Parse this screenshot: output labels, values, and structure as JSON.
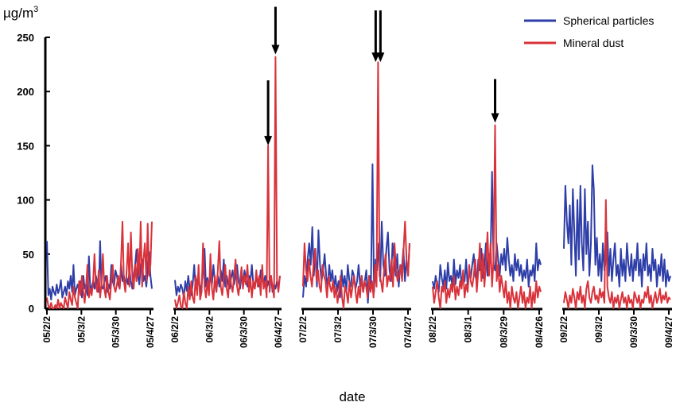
{
  "chart_data": {
    "type": "line",
    "title": "",
    "ylabel": "µg/m",
    "ylabel_superscript": "3",
    "xlabel": "date",
    "ylim": [
      0,
      250
    ],
    "yticks": [
      0,
      50,
      100,
      150,
      200,
      250
    ],
    "legend_position": "top-right",
    "series": [
      {
        "name": "Spherical particles",
        "color": "#2e3ea8"
      },
      {
        "name": "Mineral dust",
        "color": "#d9323a"
      }
    ],
    "panels": [
      {
        "tick_labels": [
          "05/2/2",
          "05/3/2",
          "05/3/30",
          "05/4/27"
        ],
        "arrows": [],
        "spherical": [
          62,
          12,
          18,
          8,
          20,
          15,
          12,
          22,
          14,
          18,
          26,
          10,
          15,
          20,
          12,
          25,
          18,
          30,
          15,
          40,
          12,
          18,
          22,
          15,
          25,
          10,
          30,
          18,
          22,
          12,
          48,
          15,
          20,
          25,
          18,
          30,
          22,
          15,
          62,
          20,
          18,
          25,
          30,
          15,
          22,
          18,
          40,
          25,
          20,
          35,
          30,
          22,
          18,
          40,
          25,
          30,
          20,
          28,
          22,
          35,
          25,
          18,
          30,
          40,
          54,
          30,
          22,
          38,
          45,
          25,
          30,
          20,
          35,
          52,
          30,
          18
        ],
        "mineral": [
          10,
          2,
          0,
          5,
          0,
          0,
          3,
          0,
          8,
          0,
          5,
          2,
          0,
          10,
          5,
          0,
          15,
          8,
          3,
          20,
          10,
          5,
          0,
          25,
          12,
          30,
          15,
          5,
          22,
          40,
          10,
          18,
          12,
          25,
          50,
          20,
          15,
          35,
          10,
          22,
          50,
          18,
          10,
          30,
          15,
          8,
          25,
          40,
          20,
          15,
          22,
          30,
          18,
          45,
          80,
          25,
          15,
          35,
          60,
          20,
          70,
          30,
          18,
          40,
          25,
          55,
          30,
          80,
          20,
          45,
          60,
          25,
          78,
          30,
          40,
          80
        ]
      },
      {
        "tick_labels": [
          "06/2/2",
          "06/3/2",
          "06/3/30",
          "06/4/27"
        ],
        "arrows": [
          148,
          232
        ],
        "spherical": [
          26,
          12,
          20,
          15,
          22,
          18,
          10,
          25,
          16,
          30,
          18,
          12,
          22,
          40,
          18,
          25,
          30,
          15,
          22,
          35,
          55,
          20,
          28,
          18,
          30,
          22,
          40,
          25,
          15,
          30,
          20,
          35,
          25,
          45,
          20,
          30,
          22,
          18,
          28,
          35,
          22,
          30,
          40,
          25,
          18,
          30,
          22,
          35,
          28,
          20,
          30,
          25,
          40,
          22,
          18,
          30,
          25,
          20,
          35,
          28,
          22,
          30,
          18,
          25,
          20,
          30,
          15,
          22,
          18,
          25,
          20,
          30
        ],
        "mineral": [
          8,
          0,
          5,
          12,
          2,
          0,
          15,
          5,
          0,
          20,
          8,
          25,
          10,
          5,
          30,
          12,
          40,
          8,
          15,
          60,
          20,
          10,
          25,
          12,
          50,
          18,
          8,
          30,
          15,
          35,
          62,
          20,
          12,
          28,
          40,
          18,
          10,
          35,
          22,
          15,
          30,
          45,
          20,
          12,
          25,
          38,
          18,
          30,
          22,
          40,
          15,
          28,
          10,
          25,
          18,
          35,
          20,
          30,
          12,
          40,
          18,
          25,
          10,
          150,
          15,
          30,
          20,
          10,
          232,
          25,
          15,
          30
        ]
      },
      {
        "tick_labels": [
          "07/2/2",
          "07/3/2",
          "07/3/30",
          "07/4/27"
        ],
        "arrows": [
          225,
          225
        ],
        "spherical": [
          10,
          30,
          20,
          45,
          60,
          40,
          75,
          30,
          55,
          20,
          72,
          40,
          25,
          35,
          50,
          30,
          20,
          40,
          25,
          35,
          18,
          30,
          15,
          25,
          10,
          35,
          20,
          30,
          15,
          40,
          25,
          20,
          35,
          30,
          18,
          25,
          40,
          20,
          30,
          15,
          25,
          35,
          5,
          30,
          20,
          133,
          15,
          45,
          35,
          60,
          25,
          80,
          40,
          30,
          55,
          70,
          35,
          25,
          60,
          45,
          30,
          50,
          20,
          40,
          35,
          55,
          25,
          45,
          30,
          60
        ],
        "mineral": [
          20,
          60,
          35,
          25,
          45,
          30,
          20,
          40,
          55,
          25,
          35,
          20,
          15,
          40,
          30,
          25,
          10,
          30,
          20,
          15,
          25,
          10,
          20,
          5,
          15,
          30,
          10,
          0,
          20,
          15,
          5,
          25,
          10,
          20,
          30,
          15,
          5,
          20,
          10,
          30,
          15,
          25,
          20,
          10,
          30,
          15,
          25,
          10,
          40,
          20,
          227,
          30,
          25,
          15,
          35,
          50,
          20,
          30,
          25,
          45,
          20,
          60,
          35,
          25,
          30,
          40,
          25,
          55,
          80,
          45,
          30,
          60
        ]
      },
      {
        "tick_labels": [
          "08/2/2",
          "08/3/1",
          "08/3/29",
          "08/4/26"
        ],
        "arrows": [
          169
        ],
        "spherical": [
          25,
          18,
          30,
          22,
          15,
          40,
          28,
          20,
          35,
          18,
          42,
          25,
          30,
          20,
          45,
          22,
          35,
          28,
          40,
          20,
          30,
          25,
          45,
          18,
          35,
          28,
          40,
          50,
          30,
          25,
          45,
          35,
          55,
          28,
          40,
          60,
          30,
          50,
          45,
          126,
          40,
          35,
          60,
          45,
          30,
          50,
          40,
          55,
          35,
          65,
          45,
          30,
          40,
          25,
          50,
          35,
          45,
          30,
          40,
          25,
          35,
          28,
          45,
          20,
          35,
          30,
          40,
          25,
          60,
          35,
          45,
          40
        ],
        "mineral": [
          20,
          5,
          15,
          25,
          10,
          0,
          20,
          15,
          25,
          5,
          18,
          10,
          22,
          15,
          30,
          8,
          20,
          12,
          25,
          18,
          35,
          10,
          22,
          15,
          40,
          25,
          20,
          30,
          45,
          15,
          35,
          60,
          25,
          50,
          20,
          40,
          70,
          30,
          60,
          20,
          45,
          169,
          25,
          40,
          15,
          30,
          20,
          10,
          25,
          5,
          15,
          0,
          20,
          10,
          5,
          15,
          0,
          10,
          20,
          5,
          15,
          0,
          10,
          5,
          20,
          0,
          15,
          5,
          25,
          10,
          20,
          15
        ]
      },
      {
        "tick_labels": [
          "09/2/2",
          "09/3/2",
          "09/3/30",
          "09/4/27"
        ],
        "arrows": [],
        "spherical": [
          55,
          113,
          80,
          60,
          95,
          40,
          110,
          70,
          30,
          100,
          45,
          113,
          60,
          35,
          110,
          50,
          80,
          30,
          60,
          132,
          110,
          40,
          65,
          30,
          50,
          25,
          60,
          35,
          45,
          70,
          30,
          55,
          25,
          45,
          60,
          30,
          40,
          20,
          55,
          30,
          45,
          25,
          60,
          40,
          30,
          50,
          25,
          45,
          35,
          60,
          30,
          45,
          20,
          50,
          35,
          60,
          30,
          40,
          25,
          55,
          35,
          45,
          20,
          40,
          30,
          50,
          25,
          45,
          20,
          35,
          25,
          30
        ],
        "mineral": [
          5,
          15,
          8,
          0,
          12,
          5,
          18,
          10,
          0,
          15,
          8,
          20,
          5,
          12,
          0,
          18,
          25,
          10,
          5,
          15,
          20,
          8,
          12,
          5,
          18,
          10,
          15,
          5,
          100,
          20,
          10,
          5,
          15,
          0,
          10,
          5,
          12,
          0,
          8,
          15,
          5,
          10,
          0,
          12,
          5,
          8,
          0,
          15,
          10,
          5,
          12,
          0,
          8,
          5,
          15,
          10,
          20,
          5,
          12,
          0,
          8,
          15,
          5,
          10,
          18,
          5,
          12,
          8,
          15,
          5,
          10,
          8
        ]
      }
    ]
  }
}
